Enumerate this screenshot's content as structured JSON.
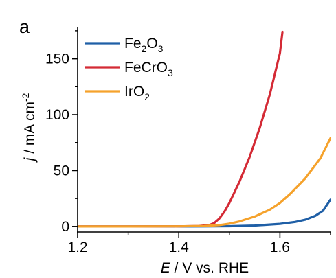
{
  "panel_label": "a",
  "chart_data": {
    "type": "line",
    "xlabel": {
      "italic": "E",
      "rest": " / V vs. RHE"
    },
    "ylabel": {
      "italic": "j",
      "rest": " / mA cm",
      "sup": "-2"
    },
    "xlim": [
      1.2,
      1.7
    ],
    "ylim": [
      -5,
      178
    ],
    "x_ticks": [
      1.2,
      1.4,
      1.6
    ],
    "x_tick_labels": [
      "1.2",
      "1.4",
      "1.6"
    ],
    "y_ticks": [
      0,
      50,
      100,
      150
    ],
    "y_tick_labels": [
      "0",
      "50",
      "100",
      "150"
    ],
    "grid": false,
    "legend_position": "top-left",
    "series": [
      {
        "name": "Fe2O3",
        "legend_parts": [
          [
            "Fe",
            ""
          ],
          [
            "2",
            "sub"
          ],
          [
            "O",
            ""
          ],
          [
            "3",
            "sub"
          ]
        ],
        "color": "#1f5fa6",
        "x": [
          1.2,
          1.3,
          1.4,
          1.45,
          1.5,
          1.55,
          1.6,
          1.63,
          1.65,
          1.67,
          1.685,
          1.7
        ],
        "y": [
          0,
          0,
          0,
          0.05,
          0.2,
          0.8,
          2.3,
          4.0,
          6.0,
          9.5,
          14,
          24
        ]
      },
      {
        "name": "FeCrO3",
        "legend_parts": [
          [
            "FeCrO",
            ""
          ],
          [
            "3",
            "sub"
          ]
        ],
        "color": "#d42a35",
        "x": [
          1.2,
          1.3,
          1.4,
          1.44,
          1.46,
          1.47,
          1.48,
          1.49,
          1.5,
          1.52,
          1.54,
          1.56,
          1.58,
          1.6,
          1.605
        ],
        "y": [
          0,
          0,
          0.1,
          0.4,
          1.2,
          3.0,
          7.0,
          13,
          21,
          40,
          62,
          88,
          118,
          155,
          174
        ]
      },
      {
        "name": "IrO2",
        "legend_parts": [
          [
            "IrO",
            ""
          ],
          [
            "2",
            "sub"
          ]
        ],
        "color": "#f5a22c",
        "x": [
          1.2,
          1.3,
          1.4,
          1.45,
          1.48,
          1.5,
          1.52,
          1.55,
          1.58,
          1.6,
          1.62,
          1.65,
          1.68,
          1.7
        ],
        "y": [
          0,
          0,
          0.1,
          0.4,
          1.2,
          2.5,
          4.5,
          8.8,
          15,
          21,
          29,
          43,
          61,
          79
        ]
      }
    ]
  }
}
